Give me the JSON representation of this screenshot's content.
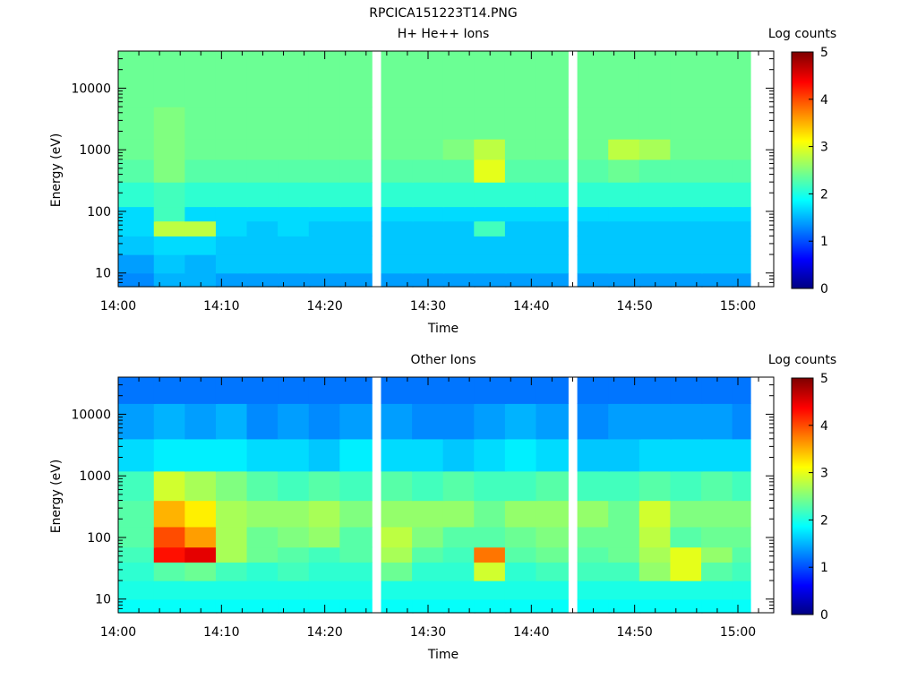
{
  "figure": {
    "title": "RPCICA151223T14.PNG"
  },
  "colorbar": {
    "label": "Log counts",
    "ticks": [
      "0",
      "1",
      "2",
      "3",
      "4",
      "5"
    ],
    "range": [
      0,
      5
    ],
    "colormap": "jet"
  },
  "chart_data": [
    {
      "type": "heatmap",
      "title": "H+ He++ Ions",
      "xlabel": "Time",
      "ylabel": "Energy (eV)",
      "x_ticks": [
        "14:00",
        "14:10",
        "14:20",
        "14:30",
        "14:40",
        "14:50",
        "15:00"
      ],
      "y_ticks": [
        "10",
        "100",
        "1000",
        "10000"
      ],
      "y_scale": "log",
      "ylim_eV": [
        6,
        40000
      ],
      "time_bins": [
        "14:02",
        "14:05",
        "14:08",
        "14:11",
        "14:14",
        "14:17",
        "14:20",
        "14:23",
        "14:27",
        "14:30",
        "14:33",
        "14:36",
        "14:39",
        "14:42",
        "14:46",
        "14:49",
        "14:52",
        "14:55",
        "14:58",
        "15:01"
      ],
      "energy_bands": [
        {
          "range_eV": [
            6,
            10
          ],
          "values": [
            1.3,
            1.5,
            1.5,
            1.4,
            1.4,
            1.4,
            1.4,
            1.4,
            1.4,
            1.4,
            1.4,
            1.4,
            1.4,
            1.4,
            1.4,
            1.4,
            1.4,
            1.4,
            1.4,
            1.4
          ]
        },
        {
          "range_eV": [
            10,
            20
          ],
          "values": [
            1.4,
            1.6,
            1.5,
            1.6,
            1.6,
            1.6,
            1.6,
            1.6,
            1.6,
            1.6,
            1.6,
            1.6,
            1.6,
            1.6,
            1.6,
            1.6,
            1.6,
            1.6,
            1.6,
            1.6
          ]
        },
        {
          "range_eV": [
            20,
            40
          ],
          "values": [
            1.6,
            1.7,
            1.7,
            1.6,
            1.6,
            1.6,
            1.6,
            1.6,
            1.6,
            1.6,
            1.6,
            1.6,
            1.6,
            1.6,
            1.6,
            1.6,
            1.6,
            1.6,
            1.6,
            1.6
          ]
        },
        {
          "range_eV": [
            40,
            70
          ],
          "values": [
            1.7,
            2.8,
            2.8,
            1.7,
            1.6,
            1.7,
            1.6,
            1.6,
            1.6,
            1.6,
            1.6,
            2.2,
            1.6,
            1.6,
            1.6,
            1.6,
            1.6,
            1.6,
            1.6,
            1.6
          ]
        },
        {
          "range_eV": [
            70,
            120
          ],
          "values": [
            1.7,
            2.2,
            1.7,
            1.7,
            1.7,
            1.7,
            1.7,
            1.7,
            1.7,
            1.7,
            1.7,
            1.7,
            1.7,
            1.7,
            1.7,
            1.7,
            1.7,
            1.7,
            1.7,
            1.7
          ]
        },
        {
          "range_eV": [
            120,
            300
          ],
          "values": [
            2.1,
            2.2,
            2.1,
            2.1,
            2.1,
            2.1,
            2.1,
            2.1,
            2.1,
            2.1,
            2.1,
            2.1,
            2.1,
            2.1,
            2.1,
            2.1,
            2.1,
            2.1,
            2.1,
            2.1
          ]
        },
        {
          "range_eV": [
            300,
            700
          ],
          "values": [
            2.3,
            2.5,
            2.3,
            2.3,
            2.3,
            2.3,
            2.3,
            2.3,
            2.3,
            2.3,
            2.3,
            3.0,
            2.3,
            2.3,
            2.3,
            2.4,
            2.3,
            2.3,
            2.3,
            2.3
          ]
        },
        {
          "range_eV": [
            700,
            1500
          ],
          "values": [
            2.4,
            2.5,
            2.4,
            2.4,
            2.4,
            2.4,
            2.4,
            2.4,
            2.4,
            2.4,
            2.5,
            2.8,
            2.4,
            2.4,
            2.4,
            2.8,
            2.7,
            2.4,
            2.4,
            2.4
          ]
        },
        {
          "range_eV": [
            1500,
            5000
          ],
          "values": [
            2.4,
            2.5,
            2.4,
            2.4,
            2.4,
            2.4,
            2.4,
            2.4,
            2.4,
            2.4,
            2.4,
            2.4,
            2.4,
            2.4,
            2.4,
            2.4,
            2.4,
            2.4,
            2.4,
            2.4
          ]
        },
        {
          "range_eV": [
            5000,
            40000
          ],
          "values": [
            2.4,
            2.4,
            2.4,
            2.4,
            2.4,
            2.4,
            2.4,
            2.4,
            2.4,
            2.4,
            2.4,
            2.4,
            2.4,
            2.4,
            2.4,
            2.4,
            2.4,
            2.4,
            2.4,
            2.4
          ]
        }
      ]
    },
    {
      "type": "heatmap",
      "title": "Other Ions",
      "xlabel": "Time",
      "ylabel": "Energy (eV)",
      "x_ticks": [
        "14:00",
        "14:10",
        "14:20",
        "14:30",
        "14:40",
        "14:50",
        "15:00"
      ],
      "y_ticks": [
        "10",
        "100",
        "1000",
        "10000"
      ],
      "y_scale": "log",
      "ylim_eV": [
        6,
        40000
      ],
      "time_bins": [
        "14:02",
        "14:05",
        "14:08",
        "14:11",
        "14:14",
        "14:17",
        "14:20",
        "14:23",
        "14:27",
        "14:30",
        "14:33",
        "14:36",
        "14:39",
        "14:42",
        "14:46",
        "14:49",
        "14:52",
        "14:55",
        "14:58",
        "15:01"
      ],
      "energy_bands": [
        {
          "range_eV": [
            6,
            10
          ],
          "values": [
            1.9,
            1.9,
            1.9,
            1.9,
            1.9,
            1.9,
            1.9,
            1.9,
            1.9,
            1.9,
            1.9,
            1.9,
            1.9,
            1.9,
            1.9,
            1.9,
            1.9,
            1.9,
            1.9,
            1.9
          ]
        },
        {
          "range_eV": [
            10,
            20
          ],
          "values": [
            2.0,
            2.0,
            2.0,
            2.0,
            2.0,
            2.0,
            2.0,
            2.0,
            2.0,
            2.0,
            2.0,
            2.0,
            2.0,
            2.0,
            2.0,
            2.0,
            2.0,
            2.0,
            2.0,
            2.0
          ]
        },
        {
          "range_eV": [
            20,
            40
          ],
          "values": [
            2.1,
            2.3,
            2.4,
            2.2,
            2.1,
            2.2,
            2.1,
            2.1,
            2.4,
            2.1,
            2.1,
            2.9,
            2.1,
            2.2,
            2.2,
            2.2,
            2.6,
            3.0,
            2.3,
            2.2
          ]
        },
        {
          "range_eV": [
            40,
            70
          ],
          "values": [
            2.2,
            4.3,
            4.5,
            2.7,
            2.4,
            2.3,
            2.2,
            2.3,
            2.7,
            2.3,
            2.2,
            3.8,
            2.3,
            2.4,
            2.3,
            2.4,
            2.7,
            3.0,
            2.6,
            2.3
          ]
        },
        {
          "range_eV": [
            70,
            150
          ],
          "values": [
            2.3,
            4.0,
            3.6,
            2.7,
            2.4,
            2.5,
            2.6,
            2.3,
            2.8,
            2.5,
            2.3,
            2.3,
            2.4,
            2.5,
            2.4,
            2.4,
            2.8,
            2.3,
            2.4,
            2.4
          ]
        },
        {
          "range_eV": [
            150,
            400
          ],
          "values": [
            2.3,
            3.5,
            3.2,
            2.7,
            2.6,
            2.6,
            2.7,
            2.5,
            2.6,
            2.6,
            2.6,
            2.4,
            2.6,
            2.6,
            2.6,
            2.4,
            2.9,
            2.5,
            2.5,
            2.5
          ]
        },
        {
          "range_eV": [
            400,
            1200
          ],
          "values": [
            2.2,
            2.9,
            2.7,
            2.5,
            2.3,
            2.2,
            2.3,
            2.2,
            2.3,
            2.2,
            2.3,
            2.2,
            2.2,
            2.3,
            2.2,
            2.2,
            2.3,
            2.2,
            2.3,
            2.2
          ]
        },
        {
          "range_eV": [
            1200,
            4000
          ],
          "values": [
            1.7,
            1.8,
            1.8,
            1.8,
            1.7,
            1.7,
            1.6,
            1.8,
            1.7,
            1.7,
            1.6,
            1.7,
            1.8,
            1.7,
            1.6,
            1.6,
            1.7,
            1.7,
            1.7,
            1.7
          ]
        },
        {
          "range_eV": [
            4000,
            15000
          ],
          "values": [
            1.4,
            1.5,
            1.4,
            1.5,
            1.3,
            1.4,
            1.3,
            1.4,
            1.4,
            1.3,
            1.3,
            1.4,
            1.5,
            1.4,
            1.3,
            1.4,
            1.4,
            1.4,
            1.4,
            1.3
          ]
        },
        {
          "range_eV": [
            15000,
            40000
          ],
          "values": [
            1.2,
            1.2,
            1.2,
            1.2,
            1.2,
            1.2,
            1.2,
            1.2,
            1.2,
            1.2,
            1.2,
            1.2,
            1.2,
            1.2,
            1.2,
            1.2,
            1.2,
            1.2,
            1.2,
            1.2
          ]
        }
      ]
    }
  ]
}
